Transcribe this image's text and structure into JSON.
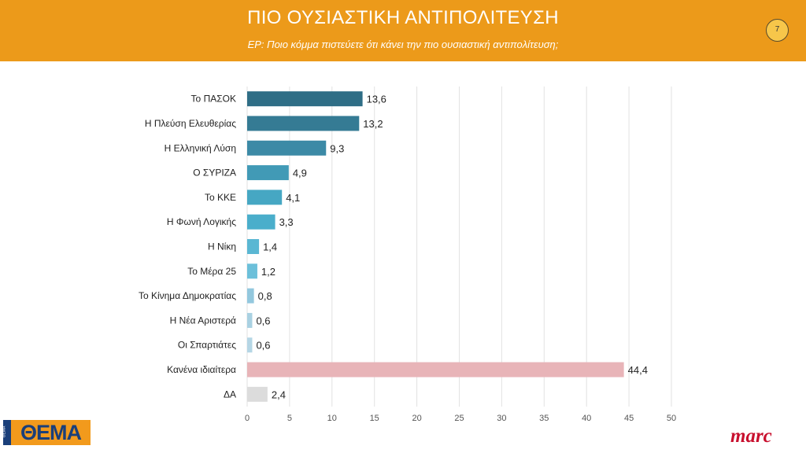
{
  "header": {
    "title": "ΠΙΟ ΟΥΣΙΑΣΤΙΚΗ ΑΝΤΙΠΟΛΙΤΕΥΣΗ",
    "subtitle": "ΕΡ: Ποιο κόμμα πιστεύετε ότι κάνει την πιο ουσιαστική αντιπολίτευση;",
    "page_number": "7",
    "color": "#ec9a1a"
  },
  "logos": {
    "left_small": "ΘΕΜΑ",
    "left": "ΘΕΜΑ",
    "right": "marc"
  },
  "chart_data": {
    "type": "bar",
    "orientation": "horizontal",
    "categories": [
      "Το ΠΑΣΟΚ",
      "Η Πλεύση Ελευθερίας",
      "Η Ελληνική Λύση",
      "Ο ΣΥΡΙΖΑ",
      "Το ΚΚΕ",
      "Η Φωνή Λογικής",
      "Η Νίκη",
      "Το Μέρα 25",
      "Το Κίνημα Δημοκρατίας",
      "Η Νέα Αριστερά",
      "Οι Σπαρτιάτες",
      "Κανένα ιδιαίτερα",
      "ΔΑ"
    ],
    "values": [
      13.6,
      13.2,
      9.3,
      4.9,
      4.1,
      3.3,
      1.4,
      1.2,
      0.8,
      0.6,
      0.6,
      44.4,
      2.4
    ],
    "value_labels": [
      "13,6",
      "13,2",
      "9,3",
      "4,9",
      "4,1",
      "3,3",
      "1,4",
      "1,2",
      "0,8",
      "0,6",
      "0,6",
      "44,4",
      "2,4"
    ],
    "colors": [
      "#2f6e86",
      "#357b94",
      "#3c8aa6",
      "#419ab6",
      "#46a7c3",
      "#4aaecb",
      "#5ab7d3",
      "#6cc0da",
      "#93c8de",
      "#a9d1e2",
      "#b5d6e5",
      "#e8b4b8",
      "#dcdcdc"
    ],
    "xlim": [
      0,
      50
    ],
    "x_ticks": [
      "0",
      "5",
      "10",
      "15",
      "20",
      "25",
      "30",
      "35",
      "40",
      "45",
      "50"
    ],
    "grid": true,
    "xlabel": "",
    "ylabel": ""
  }
}
